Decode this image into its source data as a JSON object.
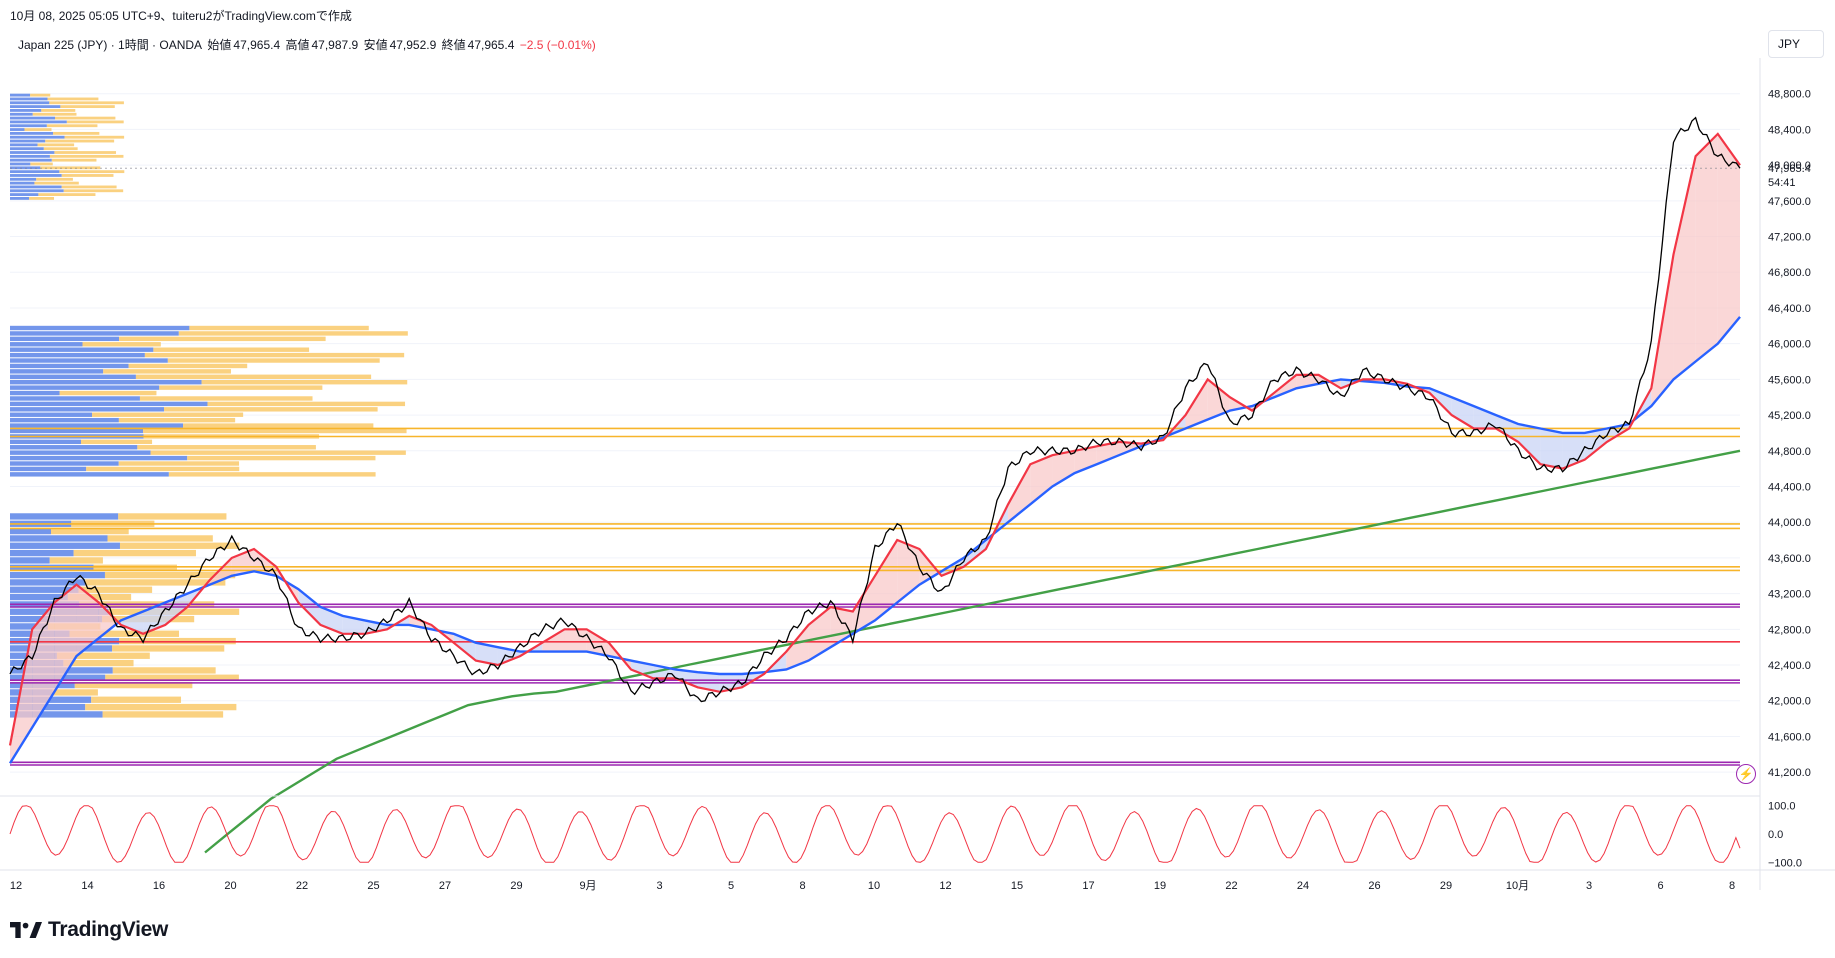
{
  "header": {
    "snapshot_line": "10月 08, 2025 05:05 UTC+9、tuiteru2がTradingView.comで作成",
    "symbol": "Japan 225 (JPY) · 1時間 · OANDA",
    "open_label": "始値",
    "open": "47,965.4",
    "high_label": "高値",
    "high": "47,987.9",
    "low_label": "安値",
    "low": "47,952.9",
    "close_label": "終値",
    "close": "47,965.4",
    "change": "−2.5 (−0.01%)"
  },
  "currency": "JPY",
  "brand": "TradingView",
  "colors": {
    "candle": "#000000",
    "ma_fast": "#f23645",
    "ma_mid": "#2962ff",
    "ma_slow": "#43a047",
    "fill_up": "#f8c9c9",
    "fill_down": "#c9d4f6",
    "level_orange": "#f7b52b",
    "level_purple": "#9c27b0",
    "level_red": "#f23645",
    "vp_blue": "#5b84e8",
    "vp_yellow": "#f9c96a",
    "oscillator": "#f23645"
  },
  "chart_data": {
    "type": "line",
    "title": "",
    "price_axis": {
      "ticks": [
        41200,
        41600,
        42000,
        42400,
        42800,
        43200,
        43600,
        44000,
        44400,
        44800,
        45200,
        45600,
        46000,
        46400,
        46800,
        47200,
        47600,
        48000,
        48400,
        48800
      ],
      "tick_labels": [
        "41,200.0",
        "41,600.0",
        "42,000.0",
        "42,400.0",
        "42,800.0",
        "43,200.0",
        "43,600.0",
        "44,000.0",
        "44,400.0",
        "44,800.0",
        "45,200.0",
        "45,600.0",
        "46,000.0",
        "46,400.0",
        "46,800.0",
        "47,200.0",
        "47,600.0",
        "48,000.0",
        "48,400.0",
        "48,800.0"
      ],
      "range": [
        41000,
        49200
      ],
      "last_price_label": "47,965.4",
      "countdown_label": "54:41"
    },
    "time_axis": {
      "labels": [
        "12",
        "14",
        "16",
        "20",
        "22",
        "25",
        "27",
        "29",
        "9月",
        "3",
        "5",
        "8",
        "10",
        "12",
        "15",
        "17",
        "19",
        "22",
        "24",
        "26",
        "29",
        "10月",
        "3",
        "6",
        "8"
      ]
    },
    "close_series": [
      42300,
      42500,
      43100,
      43400,
      43200,
      42800,
      42700,
      43000,
      43300,
      43600,
      43800,
      43600,
      43400,
      42800,
      42700,
      42700,
      42750,
      42900,
      43100,
      42700,
      42500,
      42300,
      42400,
      42600,
      42800,
      42900,
      42700,
      42500,
      42100,
      42200,
      42300,
      42000,
      42100,
      42200,
      42500,
      42700,
      43000,
      43100,
      42700,
      43700,
      44000,
      43500,
      43200,
      43600,
      43800,
      44600,
      44800,
      44800,
      44800,
      44900,
      44900,
      44850,
      44950,
      45500,
      45800,
      45100,
      45200,
      45600,
      45700,
      45600,
      45400,
      45700,
      45600,
      45500,
      45400,
      45000,
      45000,
      45100,
      44800,
      44600,
      44600,
      44800,
      45000,
      45100,
      46000,
      48300,
      48500,
      48100,
      47965
    ],
    "series": [
      {
        "name": "",
        "values": [
          41500,
          42800,
          43100,
          43300,
          43100,
          42850,
          42750,
          42850,
          43050,
          43350,
          43600,
          43700,
          43500,
          43100,
          42850,
          42750,
          42750,
          42800,
          42950,
          42850,
          42650,
          42450,
          42400,
          42500,
          42650,
          42800,
          42800,
          42650,
          42350,
          42250,
          42250,
          42150,
          42100,
          42150,
          42300,
          42550,
          42850,
          43050,
          43000,
          43400,
          43800,
          43700,
          43400,
          43500,
          43700,
          44200,
          44650,
          44750,
          44800,
          44850,
          44900,
          44880,
          44920,
          45200,
          45600,
          45400,
          45250,
          45450,
          45650,
          45650,
          45500,
          45600,
          45600,
          45550,
          45450,
          45200,
          45050,
          45050,
          44900,
          44650,
          44600,
          44700,
          44900,
          45050,
          45500,
          47000,
          48100,
          48350,
          48000
        ]
      },
      {
        "name": "",
        "values": [
          41300,
          41700,
          42100,
          42500,
          42700,
          42900,
          43000,
          43100,
          43200,
          43300,
          43400,
          43450,
          43400,
          43250,
          43050,
          42950,
          42900,
          42850,
          42850,
          42800,
          42750,
          42650,
          42600,
          42550,
          42550,
          42550,
          42550,
          42500,
          42450,
          42400,
          42350,
          42320,
          42300,
          42300,
          42320,
          42350,
          42450,
          42600,
          42750,
          42900,
          43100,
          43300,
          43450,
          43600,
          43800,
          44000,
          44200,
          44400,
          44550,
          44650,
          44750,
          44850,
          44950,
          45050,
          45150,
          45250,
          45300,
          45400,
          45500,
          45550,
          45600,
          45580,
          45560,
          45520,
          45500,
          45400,
          45300,
          45200,
          45100,
          45050,
          45000,
          45000,
          45050,
          45100,
          45300,
          45600,
          45800,
          46000,
          46300
        ]
      },
      {
        "name": "",
        "values": [
          40300,
          40500,
          40700,
          40900,
          41050,
          41200,
          41350,
          41450,
          41550,
          41650,
          41750,
          41850,
          41950,
          42000,
          42050,
          42080,
          42100,
          42150,
          42200,
          42250,
          42300,
          42350,
          42400,
          42450,
          42500,
          42550,
          42600,
          42650,
          42700,
          42750,
          42800,
          42850,
          42900,
          42950,
          43000,
          43050,
          43100,
          43150,
          43200,
          43250,
          43300,
          43350,
          43400,
          43450,
          43500,
          43550,
          43600,
          43650,
          43700,
          43750,
          43800,
          43850,
          43900,
          43950,
          44000,
          44050,
          44100,
          44150,
          44200,
          44250,
          44300,
          44350,
          44400,
          44450,
          44500,
          44550,
          44600,
          44650,
          44700,
          44750,
          44800
        ]
      }
    ],
    "levels": [
      {
        "price": 45050,
        "color": "#f7b52b"
      },
      {
        "price": 44960,
        "color": "#f7b52b"
      },
      {
        "price": 43980,
        "color": "#f7b52b"
      },
      {
        "price": 43930,
        "color": "#f7b52b"
      },
      {
        "price": 43500,
        "color": "#f7b52b"
      },
      {
        "price": 43460,
        "color": "#f7b52b"
      },
      {
        "price": 43080,
        "color": "#9c27b0"
      },
      {
        "price": 43050,
        "color": "#9c27b0"
      },
      {
        "price": 42660,
        "color": "#f23645"
      },
      {
        "price": 42230,
        "color": "#9c27b0"
      },
      {
        "price": 42200,
        "color": "#9c27b0"
      },
      {
        "price": 41310,
        "color": "#9c27b0"
      },
      {
        "price": 41280,
        "color": "#9c27b0"
      }
    ],
    "oscillator": {
      "ticks": [
        100,
        0,
        -100
      ],
      "tick_labels": [
        "100.0",
        "0.0",
        "−100.0"
      ],
      "range": [
        -120,
        120
      ],
      "last_value": -50
    }
  }
}
